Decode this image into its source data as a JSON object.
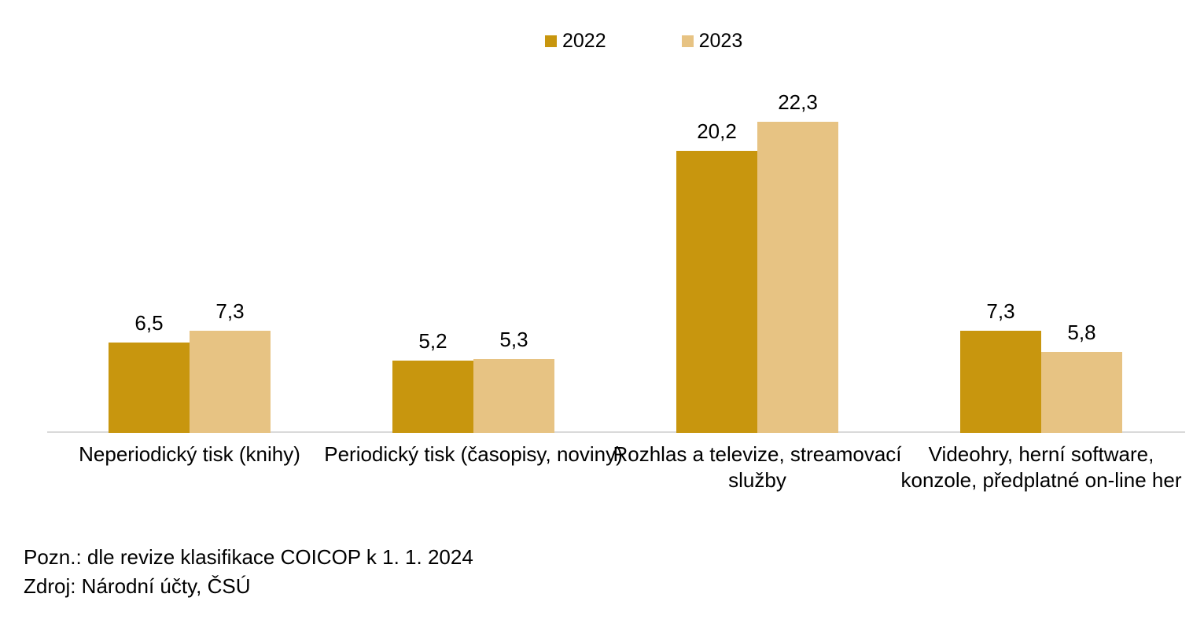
{
  "chart_data": {
    "type": "bar",
    "categories": [
      "Neperiodický tisk (knihy)",
      "Periodický tisk (časopisy, noviny)",
      "Rozhlas a televize, streamovací služby",
      "Videohry, herní software, konzole, předplatné on-line her"
    ],
    "series": [
      {
        "name": "2022",
        "color": "#C8960E",
        "values": [
          6.5,
          5.2,
          20.2,
          7.3
        ],
        "value_labels": [
          "6,5",
          "5,2",
          "20,2",
          "7,3"
        ]
      },
      {
        "name": "2023",
        "color": "#E7C383",
        "values": [
          7.3,
          5.3,
          22.3,
          5.8
        ],
        "value_labels": [
          "7,3",
          "5,3",
          "22,3",
          "5,8"
        ]
      }
    ],
    "title": "",
    "xlabel": "",
    "ylabel": "",
    "ylim": [
      0,
      22.3
    ],
    "grid": false,
    "axis_labels_visible": false,
    "legend_position": "top-center",
    "value_label_format": "comma-decimal"
  },
  "legend": {
    "items": [
      {
        "label": "2022",
        "color": "#C8960E"
      },
      {
        "label": "2023",
        "color": "#E7C383"
      }
    ]
  },
  "notes": {
    "note": "Pozn.: dle revize klasifikace COICOP k 1. 1. 2024",
    "source": "Zdroj: Národní účty, ČSÚ"
  },
  "colors": {
    "series_2022": "#C8960E",
    "series_2023": "#E7C383",
    "axis_line": "#D9D9D9",
    "text": "#000000",
    "background": "#FFFFFF"
  }
}
